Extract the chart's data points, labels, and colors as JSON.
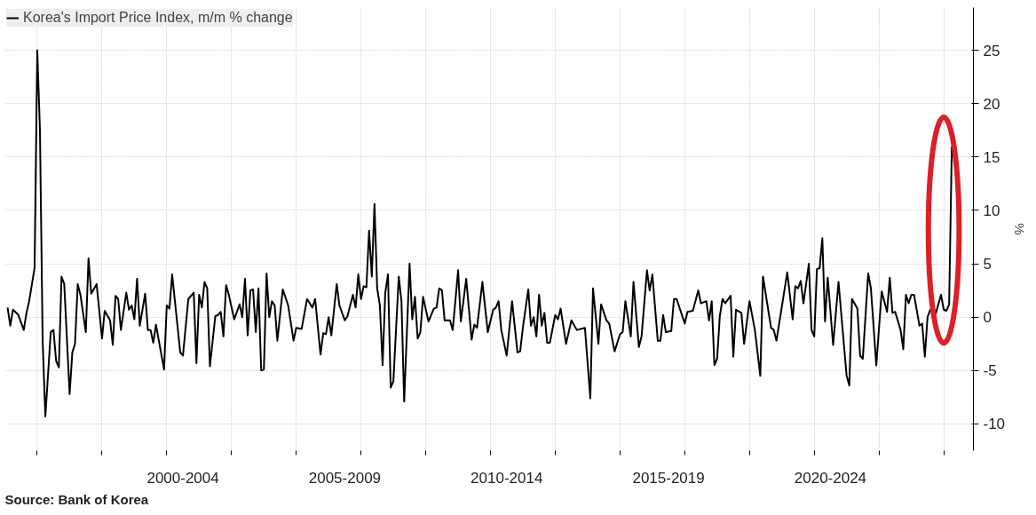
{
  "chart_data": {
    "type": "line",
    "x": [
      "1997-02",
      "1997-03",
      "1997-04",
      "1997-06",
      "1997-08",
      "1997-09",
      "1997-10",
      "1997-12",
      "1998-01",
      "1998-02",
      "1998-03",
      "1998-04",
      "1998-06",
      "1998-07",
      "1998-08",
      "1998-09",
      "1998-10",
      "1998-11",
      "1999-01",
      "1999-02",
      "1999-03",
      "1999-04",
      "1999-05",
      "1999-07",
      "1999-08",
      "1999-09",
      "1999-11",
      "2000-01",
      "2000-02",
      "2000-04",
      "2000-05",
      "2000-06",
      "2000-07",
      "2000-08",
      "2000-10",
      "2000-11",
      "2000-12",
      "2001-01",
      "2001-02",
      "2001-03",
      "2001-05",
      "2001-06",
      "2001-07",
      "2001-08",
      "2001-09",
      "2001-12",
      "2002-01",
      "2002-02",
      "2002-03",
      "2002-06",
      "2002-07",
      "2002-09",
      "2002-11",
      "2002-12",
      "2003-01",
      "2003-02",
      "2003-03",
      "2003-04",
      "2003-05",
      "2003-07",
      "2003-08",
      "2003-09",
      "2003-10",
      "2003-11",
      "2003-12",
      "2004-02",
      "2004-04",
      "2004-05",
      "2004-06",
      "2004-07",
      "2004-08",
      "2004-09",
      "2004-10",
      "2004-11",
      "2004-12",
      "2005-01",
      "2005-02",
      "2005-03",
      "2005-04",
      "2005-05",
      "2005-06",
      "2005-08",
      "2005-10",
      "2005-12",
      "2006-01",
      "2006-03",
      "2006-05",
      "2006-07",
      "2006-08",
      "2006-10",
      "2006-11",
      "2006-12",
      "2007-01",
      "2007-02",
      "2007-04",
      "2007-05",
      "2007-07",
      "2007-08",
      "2007-10",
      "2007-11",
      "2007-12",
      "2008-01",
      "2008-02",
      "2008-03",
      "2008-04",
      "2008-05",
      "2008-06",
      "2008-07",
      "2008-08",
      "2008-09",
      "2008-10",
      "2008-11",
      "2008-12",
      "2009-01",
      "2009-03",
      "2009-04",
      "2009-05",
      "2009-07",
      "2009-08",
      "2009-09",
      "2009-10",
      "2009-11",
      "2009-12",
      "2010-02",
      "2010-04",
      "2010-05",
      "2010-06",
      "2010-07",
      "2010-08",
      "2010-10",
      "2010-11",
      "2011-01",
      "2011-02",
      "2011-04",
      "2011-06",
      "2011-07",
      "2011-08",
      "2011-10",
      "2011-12",
      "2012-02",
      "2012-03",
      "2012-04",
      "2012-05",
      "2012-07",
      "2012-09",
      "2012-11",
      "2012-12",
      "2013-01",
      "2013-03",
      "2013-04",
      "2013-05",
      "2013-06",
      "2013-07",
      "2013-08",
      "2013-09",
      "2013-10",
      "2013-11",
      "2014-01",
      "2014-02",
      "2014-03",
      "2014-05",
      "2014-07",
      "2014-09",
      "2014-12",
      "2015-02",
      "2015-03",
      "2015-05",
      "2015-06",
      "2015-08",
      "2015-09",
      "2015-11",
      "2016-01",
      "2016-02",
      "2016-03",
      "2016-05",
      "2016-06",
      "2016-08",
      "2016-09",
      "2016-11",
      "2016-12",
      "2017-01",
      "2017-03",
      "2017-04",
      "2017-05",
      "2017-06",
      "2017-08",
      "2017-09",
      "2017-10",
      "2018-01",
      "2018-02",
      "2018-04",
      "2018-06",
      "2018-07",
      "2018-09",
      "2018-10",
      "2018-11",
      "2018-12",
      "2019-01",
      "2019-02",
      "2019-03",
      "2019-04",
      "2019-06",
      "2019-07",
      "2019-08",
      "2019-10",
      "2019-11",
      "2020-01",
      "2020-03",
      "2020-05",
      "2020-06",
      "2020-09",
      "2020-10",
      "2020-11",
      "2021-03",
      "2021-05",
      "2021-06",
      "2021-07",
      "2021-08",
      "2021-09",
      "2021-11",
      "2021-12",
      "2022-01",
      "2022-02",
      "2022-03",
      "2022-04",
      "2022-05",
      "2022-06",
      "2022-08",
      "2022-10",
      "2023-01",
      "2023-02",
      "2023-03",
      "2023-05",
      "2023-06",
      "2023-07",
      "2023-09",
      "2023-10",
      "2023-12",
      "2024-02",
      "2024-04",
      "2024-05",
      "2024-06",
      "2024-07",
      "2024-09",
      "2024-10",
      "2024-11",
      "2024-12",
      "2025-01",
      "2025-02",
      "2025-04",
      "2025-05",
      "2025-06",
      "2025-07",
      "2025-08",
      "2025-10",
      "2025-12",
      "2026-01",
      "2026-02",
      "2026-03",
      "2026-04"
    ],
    "series": [
      {
        "name": "Korea's Import Price Index, m/m % change",
        "color": "#000000",
        "values": [
          0.9,
          -0.8,
          0.7,
          0.2,
          -1.2,
          0.4,
          1.5,
          4.6,
          25.0,
          17.5,
          -2.2,
          -9.3,
          -1.4,
          -1.2,
          -4.1,
          -4.7,
          3.8,
          3.1,
          -7.2,
          -3.3,
          -2.5,
          3.1,
          2.1,
          -1.4,
          5.5,
          2.2,
          3.1,
          -2.0,
          0.6,
          -0.3,
          -2.6,
          2.0,
          1.7,
          -1.2,
          2.3,
          0.7,
          1.1,
          -0.2,
          3.6,
          -0.8,
          2.2,
          -1.2,
          -1.2,
          -2.4,
          -0.7,
          -4.9,
          1.1,
          0.8,
          4.0,
          -3.3,
          -3.6,
          1.7,
          2.3,
          -4.3,
          2.1,
          0.9,
          3.3,
          2.7,
          -4.6,
          0.1,
          0.2,
          0.5,
          -1.8,
          3.0,
          2.1,
          -0.2,
          1.2,
          0.0,
          3.6,
          -1.7,
          2.5,
          2.6,
          -1.4,
          2.7,
          -5.0,
          -4.9,
          4.1,
          0.0,
          1.5,
          1.1,
          -2.2,
          2.6,
          1.1,
          -2.2,
          -1.0,
          -1.1,
          1.7,
          0.9,
          1.7,
          -3.5,
          -1.5,
          -1.6,
          0.0,
          -1.7,
          3.1,
          1.1,
          -0.3,
          0.1,
          2.1,
          0.9,
          4.0,
          1.7,
          2.9,
          2.8,
          8.1,
          3.8,
          10.6,
          2.7,
          1.1,
          -4.5,
          2.3,
          4.0,
          -6.6,
          -6.0,
          3.8,
          1.5,
          -7.9,
          5.0,
          -0.2,
          1.9,
          -2.0,
          -1.4,
          1.9,
          -0.4,
          0.8,
          0.9,
          2.7,
          2.5,
          -0.3,
          -0.3,
          -1.2,
          4.4,
          -0.4,
          3.6,
          -2.1,
          -0.7,
          -1.0,
          3.3,
          -1.4,
          0.7,
          0.9,
          1.5,
          -1.2,
          -3.6,
          1.5,
          -3.3,
          -3.2,
          -1.0,
          2.6,
          -0.8,
          0.0,
          -1.8,
          2.1,
          -0.8,
          0.4,
          -2.4,
          -2.4,
          0.2,
          -0.2,
          0.8,
          -2.5,
          -0.3,
          -1.2,
          -1.0,
          -7.6,
          2.7,
          -2.5,
          1.2,
          -0.3,
          -0.6,
          -3.2,
          -1.6,
          -1.4,
          1.5,
          -1.8,
          3.3,
          -2.8,
          -1.8,
          4.4,
          2.5,
          4.0,
          -2.2,
          -2.2,
          0.2,
          -1.4,
          -1.3,
          1.7,
          1.7,
          -0.6,
          0.5,
          0.6,
          2.5,
          1.3,
          1.5,
          -0.3,
          1.5,
          -4.5,
          -3.9,
          0.1,
          1.7,
          1.3,
          2.0,
          -3.7,
          0.7,
          0.4,
          -2.5,
          1.5,
          -1.2,
          -5.5,
          3.8,
          -1.0,
          -1.2,
          -2.2,
          4.2,
          -0.2,
          2.9,
          2.7,
          3.4,
          1.3,
          5.0,
          -1.2,
          -1.8,
          4.5,
          4.6,
          7.4,
          -0.4,
          3.7,
          -2.6,
          3.3,
          -5.5,
          -6.4,
          1.7,
          0.8,
          -3.6,
          -3.9,
          4.1,
          2.7,
          -4.5,
          2.4,
          0.5,
          3.7,
          0.4,
          0.5,
          -1.2,
          -3.0,
          2.1,
          1.3,
          2.1,
          2.1,
          -0.8,
          -0.6,
          -3.7,
          0.0,
          0.7,
          0.3,
          2.1,
          0.7,
          0.6,
          1.2,
          16.0
        ]
      }
    ],
    "xlim": [
      "1997-01",
      "2026-12"
    ],
    "xticks": [
      {
        "value": "1998-01",
        "label": null
      },
      {
        "value": "2000-01",
        "label": null
      },
      {
        "value": "2002-01",
        "label": null
      },
      {
        "value": "2004-01",
        "label": null
      },
      {
        "value": "2006-01",
        "label": null
      },
      {
        "value": "2008-01",
        "label": null
      },
      {
        "value": "2010-01",
        "label": null
      },
      {
        "value": "2012-01",
        "label": null
      },
      {
        "value": "2014-01",
        "label": null
      },
      {
        "value": "2016-01",
        "label": null
      },
      {
        "value": "2018-01",
        "label": null
      },
      {
        "value": "2020-01",
        "label": null
      },
      {
        "value": "2022-01",
        "label": null
      },
      {
        "value": "2024-01",
        "label": null
      },
      {
        "value": "2026-01",
        "label": null
      },
      {
        "value": "2002-07",
        "label": "2000-2004"
      },
      {
        "value": "2007-07",
        "label": "2005-2009"
      },
      {
        "value": "2012-07",
        "label": "2010-2014"
      },
      {
        "value": "2017-07",
        "label": "2015-2019"
      },
      {
        "value": "2022-07",
        "label": "2020-2024"
      }
    ],
    "ylim": [
      -12.5,
      29
    ],
    "yticks": [
      -10,
      -5,
      0,
      5,
      10,
      15,
      20,
      25
    ],
    "ylabel": "%",
    "grid": true,
    "legend": "top left",
    "annotations": [
      "Source: Bank of Korea"
    ]
  }
}
